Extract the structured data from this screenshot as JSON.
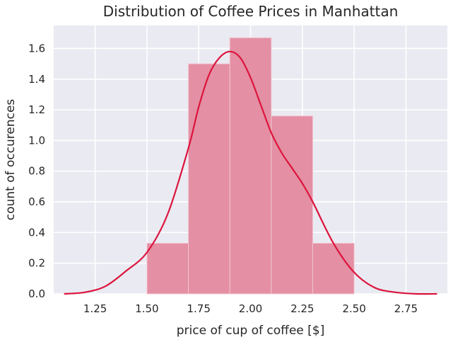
{
  "chart_data": {
    "type": "bar",
    "title": "Distribution of Coffee Prices in Manhattan",
    "xlabel": "price of cup of coffee [$]",
    "ylabel": "count of occurences",
    "xlim": [
      1.05,
      2.95
    ],
    "ylim": [
      0,
      1.75
    ],
    "xticks": [
      1.25,
      1.5,
      1.75,
      2.0,
      2.25,
      2.5,
      2.75
    ],
    "xtick_labels": [
      "1.25",
      "1.50",
      "1.75",
      "2.00",
      "2.25",
      "2.50",
      "2.75"
    ],
    "yticks": [
      0.0,
      0.2,
      0.4,
      0.6,
      0.8,
      1.0,
      1.2,
      1.4,
      1.6
    ],
    "ytick_labels": [
      "0.0",
      "0.2",
      "0.4",
      "0.6",
      "0.8",
      "1.0",
      "1.2",
      "1.4",
      "1.6"
    ],
    "grid": true,
    "bins": [
      {
        "x0": 1.5,
        "x1": 1.7,
        "value": 0.33
      },
      {
        "x0": 1.7,
        "x1": 1.9,
        "value": 1.5
      },
      {
        "x0": 1.9,
        "x1": 2.1,
        "value": 1.67
      },
      {
        "x0": 2.1,
        "x1": 2.3,
        "value": 1.16
      },
      {
        "x0": 2.3,
        "x1": 2.5,
        "value": 0.33
      }
    ],
    "kde": {
      "x": [
        1.1,
        1.2,
        1.3,
        1.4,
        1.5,
        1.6,
        1.7,
        1.75,
        1.8,
        1.85,
        1.9,
        1.95,
        2.0,
        2.05,
        2.1,
        2.15,
        2.2,
        2.25,
        2.3,
        2.4,
        2.5,
        2.6,
        2.7,
        2.8,
        2.9
      ],
      "y": [
        0.0,
        0.01,
        0.05,
        0.15,
        0.27,
        0.52,
        0.95,
        1.22,
        1.43,
        1.54,
        1.58,
        1.54,
        1.41,
        1.23,
        1.05,
        0.92,
        0.82,
        0.72,
        0.6,
        0.33,
        0.14,
        0.04,
        0.01,
        0.0,
        0.0
      ]
    },
    "colors": {
      "background": "#eaeaf2",
      "grid": "#ffffff",
      "bar": "#e48fa4",
      "bar_edge": "#f2c4cf",
      "kde": "#dc143c"
    }
  }
}
